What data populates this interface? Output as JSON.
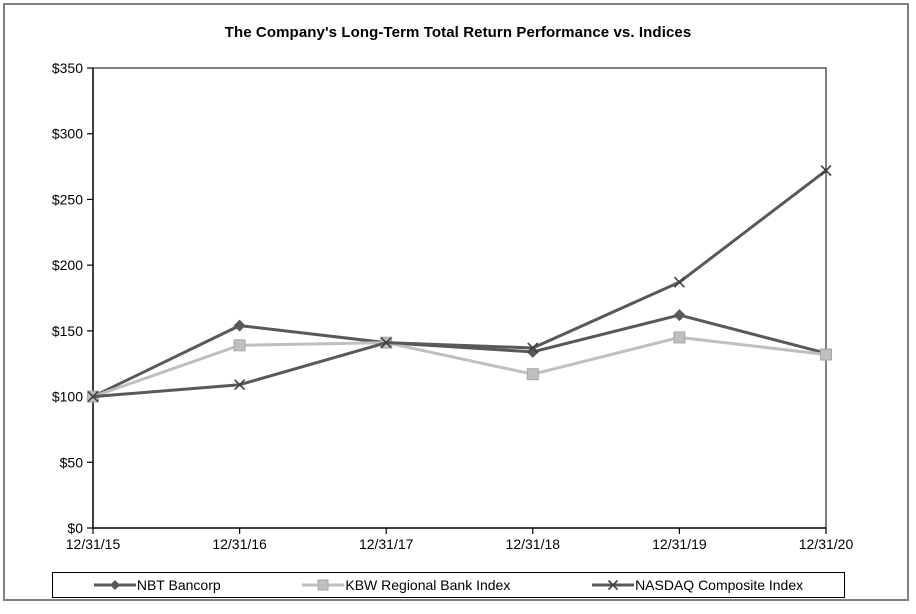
{
  "chart_data": {
    "type": "line",
    "title": "The Company's Long-Term Total Return Performance vs. Indices",
    "xlabel": "",
    "ylabel": "",
    "categories": [
      "12/31/15",
      "12/31/16",
      "12/31/17",
      "12/31/18",
      "12/31/19",
      "12/31/20"
    ],
    "series": [
      {
        "name": "NBT Bancorp",
        "marker": "diamond",
        "color": "#595959",
        "values": [
          100,
          154,
          141,
          134,
          162,
          133
        ]
      },
      {
        "name": "KBW Regional Bank Index",
        "marker": "square",
        "color": "#bfbfbf",
        "values": [
          100,
          139,
          141,
          117,
          145,
          132
        ]
      },
      {
        "name": "NASDAQ Composite Index",
        "marker": "x",
        "color": "#595959",
        "marker_color": "#404040",
        "values": [
          100,
          109,
          141,
          137,
          187,
          272
        ]
      }
    ],
    "ylim": [
      0,
      350
    ],
    "y_ticks": [
      0,
      50,
      100,
      150,
      200,
      250,
      300,
      350
    ],
    "y_tick_labels": [
      "$0",
      "$50",
      "$100",
      "$150",
      "$200",
      "$250",
      "$300",
      "$350"
    ],
    "grid": false,
    "legend_position": "bottom",
    "axis_color": "#000000",
    "frame_color": "#808080"
  }
}
